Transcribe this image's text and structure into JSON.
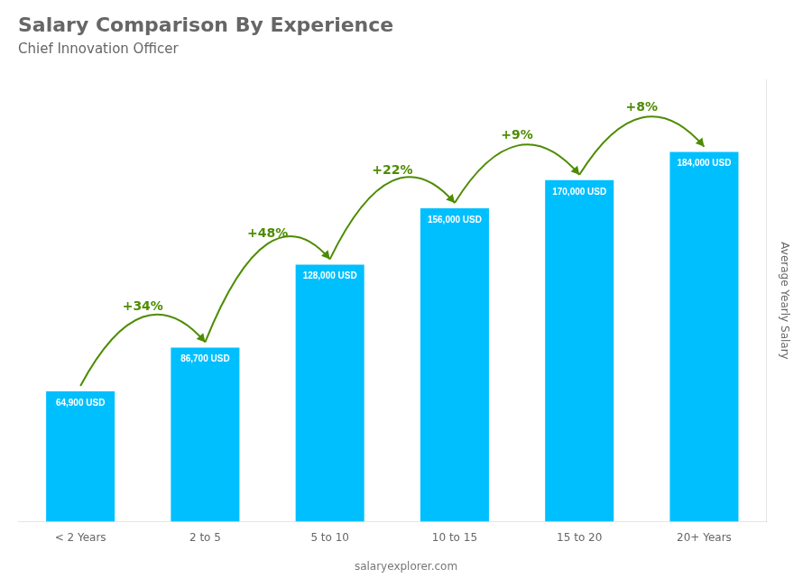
{
  "chart_data": {
    "type": "bar",
    "title": "Salary Comparison By Experience",
    "subtitle": "Chief Innovation Officer",
    "categories": [
      "< 2 Years",
      "2 to 5",
      "5 to 10",
      "10 to 15",
      "15 to 20",
      "20+ Years"
    ],
    "values": [
      64900,
      86700,
      128000,
      156000,
      170000,
      184000
    ],
    "value_labels": [
      "64,900 USD",
      "86,700 USD",
      "128,000 USD",
      "156,000 USD",
      "170,000 USD",
      "184,000 USD"
    ],
    "data_labels": true,
    "color": "#00bfff",
    "ylabel": "Average Yearly Salary",
    "ylim": [
      0,
      220000
    ],
    "grid": false,
    "tick_labels": "x",
    "annotations": [
      {
        "text": "+34%",
        "from": "< 2 Years",
        "to": "2 to 5"
      },
      {
        "text": "+48%",
        "from": "2 to 5",
        "to": "5 to 10"
      },
      {
        "text": "+22%",
        "from": "5 to 10",
        "to": "10 to 15"
      },
      {
        "text": "+9%",
        "from": "10 to 15",
        "to": "15 to 20"
      },
      {
        "text": "+8%",
        "from": "15 to 20",
        "to": "20+ Years"
      },
      {
        "text": "salaryexplorer.com"
      }
    ]
  }
}
